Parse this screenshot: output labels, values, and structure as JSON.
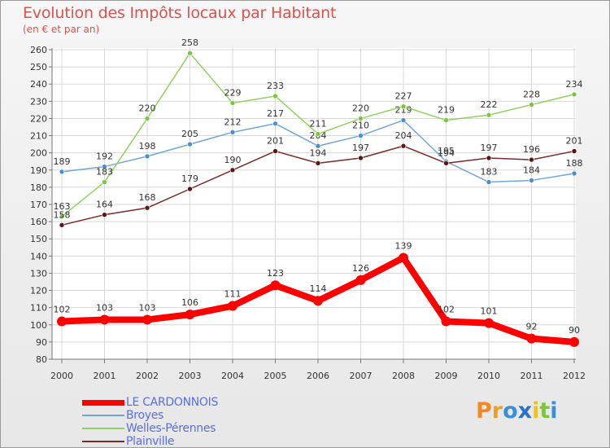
{
  "header": {
    "title": "Evolution des Impôts locaux par Habitant",
    "subtitle": "(en € et par an)"
  },
  "legend": [
    {
      "name": "LE CARDONNOIS",
      "color": "#ff0000"
    },
    {
      "name": "Broyes",
      "color": "#6fa7d8"
    },
    {
      "name": "Welles-Pérennes",
      "color": "#90d060"
    },
    {
      "name": "Plainville",
      "color": "#7a2a2a"
    }
  ],
  "logo": {
    "text": "Proxiti"
  },
  "chart_data": {
    "type": "line",
    "title": "Evolution des Impôts locaux par Habitant",
    "subtitle": "(en € et par an)",
    "x": [
      "2000",
      "2001",
      "2002",
      "2003",
      "2004",
      "2005",
      "2006",
      "2007",
      "2008",
      "2009",
      "2010",
      "2011",
      "2012"
    ],
    "ylim": [
      80,
      260
    ],
    "yticks": [
      80,
      90,
      100,
      110,
      120,
      130,
      140,
      150,
      160,
      170,
      180,
      190,
      200,
      210,
      220,
      230,
      240,
      250,
      260
    ],
    "grid": true,
    "legend_position": "bottom-left",
    "series": [
      {
        "name": "LE CARDONNOIS",
        "color": "#ff0000",
        "values": [
          102,
          103,
          103,
          106,
          111,
          123,
          114,
          126,
          139,
          102,
          101,
          92,
          90
        ]
      },
      {
        "name": "Broyes",
        "color": "#6fa7d8",
        "values": [
          189,
          192,
          198,
          205,
          212,
          217,
          204,
          210,
          219,
          195,
          183,
          184,
          188
        ]
      },
      {
        "name": "Welles-Pérennes",
        "color": "#90d060",
        "values": [
          163,
          183,
          220,
          258,
          229,
          233,
          211,
          220,
          227,
          219,
          222,
          228,
          234
        ]
      },
      {
        "name": "Plainville",
        "color": "#7a2a2a",
        "values": [
          158,
          164,
          168,
          179,
          190,
          201,
          194,
          197,
          204,
          194,
          197,
          196,
          201
        ]
      }
    ]
  }
}
